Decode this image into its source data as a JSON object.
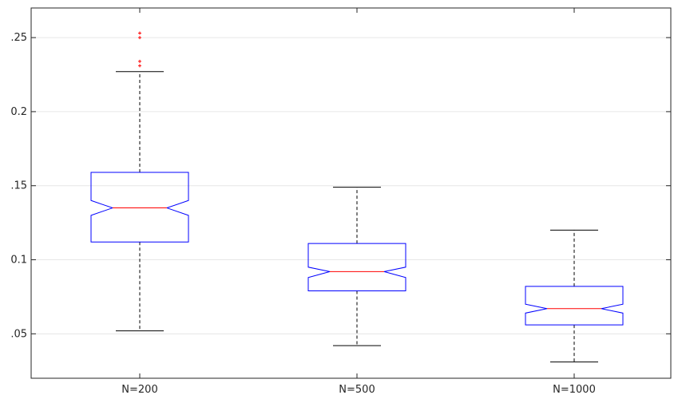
{
  "chart_data": {
    "type": "box",
    "categories": [
      "N=200",
      "N=500",
      "N=1000"
    ],
    "ylim": [
      0.02,
      0.27
    ],
    "yticks": [
      0.05,
      0.1,
      0.15,
      0.2,
      0.25
    ],
    "ytick_labels": [
      ".05",
      "0.1",
      ".15",
      "0.2",
      ".25"
    ],
    "grid": "horizontal",
    "notched": true,
    "boxes": [
      {
        "name": "N=200",
        "whisker_low": 0.052,
        "q1": 0.112,
        "notch_low": 0.13,
        "median": 0.135,
        "notch_high": 0.14,
        "q3": 0.159,
        "whisker_high": 0.227,
        "outliers": [
          0.253,
          0.25,
          0.234,
          0.231
        ]
      },
      {
        "name": "N=500",
        "whisker_low": 0.042,
        "q1": 0.079,
        "notch_low": 0.088,
        "median": 0.092,
        "notch_high": 0.095,
        "q3": 0.111,
        "whisker_high": 0.149,
        "outliers": []
      },
      {
        "name": "N=1000",
        "whisker_low": 0.031,
        "q1": 0.056,
        "notch_low": 0.064,
        "median": 0.067,
        "notch_high": 0.07,
        "q3": 0.082,
        "whisker_high": 0.12,
        "outliers": []
      }
    ],
    "colors": {
      "box": "#0000ff",
      "median": "#ff0000",
      "outlier": "#ff0000",
      "whisker": "#000000",
      "grid": "#e6e6e6",
      "axis": "#262626"
    }
  }
}
